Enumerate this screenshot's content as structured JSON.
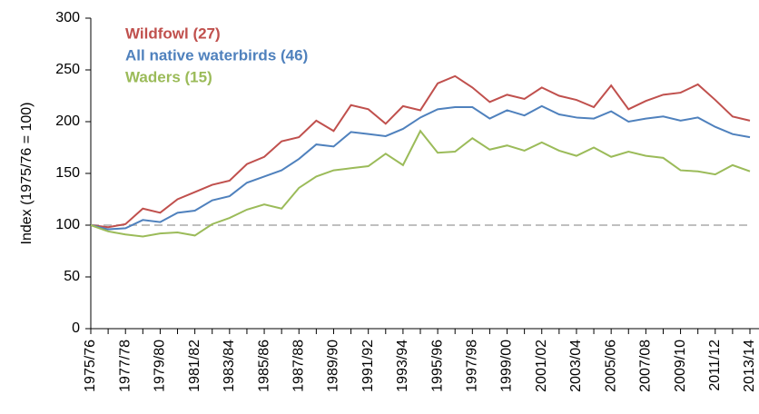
{
  "chart_data": {
    "type": "line",
    "y_label": "Index (1975/76 = 100)",
    "categories": [
      "1975/76",
      null,
      "1977/78",
      null,
      "1979/80",
      null,
      "1981/82",
      null,
      "1983/84",
      null,
      "1985/86",
      null,
      "1987/88",
      null,
      "1989/90",
      null,
      "1991/92",
      null,
      "1993/94",
      null,
      "1995/96",
      null,
      "1997/98",
      null,
      "1999/00",
      null,
      "2001/02",
      null,
      "2003/04",
      null,
      "2005/06",
      null,
      "2007/08",
      null,
      "2009/10",
      null,
      "2011/12",
      null,
      "2013/14"
    ],
    "series": [
      {
        "name": "Wildfowl (27)",
        "color": "#c0504d",
        "values": [
          100,
          98,
          101,
          116,
          112,
          125,
          132,
          139,
          143,
          159,
          166,
          181,
          185,
          201,
          191,
          216,
          212,
          198,
          215,
          211,
          237,
          244,
          233,
          219,
          226,
          222,
          233,
          225,
          221,
          214,
          235,
          212,
          220,
          226,
          228,
          236,
          221,
          205,
          201
        ]
      },
      {
        "name": "All native waterbirds (46)",
        "color": "#4f81bd",
        "values": [
          100,
          96,
          97,
          105,
          103,
          112,
          114,
          124,
          128,
          141,
          147,
          153,
          164,
          178,
          176,
          190,
          188,
          186,
          193,
          204,
          212,
          214,
          214,
          203,
          211,
          206,
          215,
          207,
          204,
          203,
          210,
          200,
          203,
          205,
          201,
          204,
          195,
          188,
          185
        ]
      },
      {
        "name": "Waders (15)",
        "color": "#9bbb59",
        "values": [
          100,
          94,
          91,
          89,
          92,
          93,
          90,
          101,
          107,
          115,
          120,
          116,
          136,
          147,
          153,
          155,
          157,
          169,
          158,
          191,
          170,
          171,
          184,
          173,
          177,
          172,
          180,
          172,
          167,
          175,
          166,
          171,
          167,
          165,
          153,
          152,
          149,
          158,
          152
        ]
      }
    ],
    "reference_line": 100,
    "ylim": [
      0,
      300
    ],
    "yticks": [
      0,
      50,
      100,
      150,
      200,
      250,
      300
    ]
  }
}
